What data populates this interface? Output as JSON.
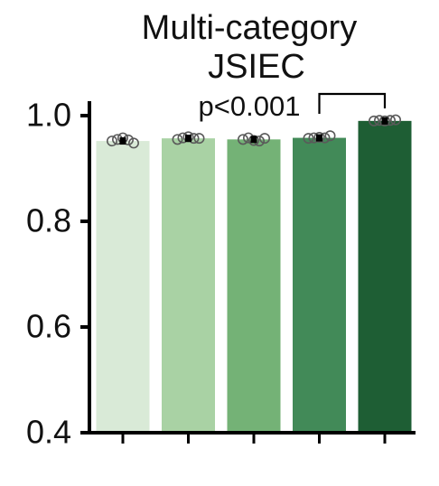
{
  "chart_data": {
    "type": "bar",
    "title": "Multi-category",
    "subtitle": "JSIEC",
    "ylim": [
      0.4,
      1.0
    ],
    "y_ticks": [
      "0.4",
      "0.6",
      "0.8",
      "1.0"
    ],
    "grid": false,
    "categories": [
      "",
      "",
      "",
      "",
      ""
    ],
    "values": [
      0.952,
      0.957,
      0.955,
      0.958,
      0.99
    ],
    "errors": [
      0.004,
      0.003,
      0.003,
      0.003,
      0.002
    ],
    "points": [
      [
        0.952,
        0.955,
        0.958,
        0.954,
        0.948
      ],
      [
        0.955,
        0.958,
        0.96,
        0.957,
        0.957
      ],
      [
        0.955,
        0.958,
        0.953,
        0.952,
        0.957
      ],
      [
        0.957,
        0.958,
        0.959,
        0.958,
        0.962
      ],
      [
        0.99,
        0.991,
        0.99,
        0.991,
        0.992
      ]
    ],
    "bar_colors": [
      "#d9ead7",
      "#a9d2a4",
      "#74b276",
      "#428a58",
      "#1e5e34"
    ],
    "annotation": {
      "text": "p<0.001",
      "from_bar": 3,
      "to_bar": 4
    }
  }
}
